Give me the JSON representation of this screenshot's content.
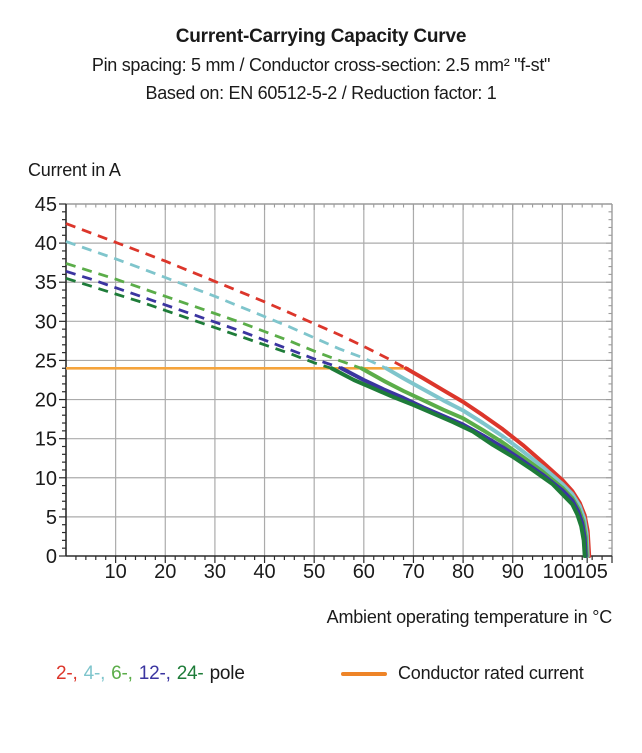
{
  "header": {
    "subtitle1": "Pin spacing: 5 mm / Conductor cross-section: 2.5 mm² \"f-st\"",
    "subtitle2": "Based on: EN 60512-5-2 / Reduction factor: 1"
  },
  "chart_data": {
    "type": "line",
    "title": "Current-Carrying Capacity Curve",
    "xlabel": "Ambient operating temperature in °C",
    "ylabel": "Current in A",
    "xlim": [
      0,
      110
    ],
    "ylim": [
      0,
      45
    ],
    "grid": true,
    "x_tick_labels": [
      10,
      20,
      30,
      40,
      50,
      60,
      70,
      80,
      90,
      100,
      105
    ],
    "x_gridlines": [
      10,
      20,
      30,
      40,
      50,
      60,
      70,
      80,
      90,
      100
    ],
    "x_tick_minor_step": 2,
    "y_tick_labels": [
      0,
      5,
      10,
      15,
      20,
      25,
      30,
      35,
      40,
      45
    ],
    "y_gridlines": [
      5,
      10,
      15,
      20,
      25,
      30,
      35,
      40
    ],
    "y_tick_minor_step": 1,
    "colors": {
      "grid": "#ababab",
      "border": "#9c9c9c",
      "axis": "#2b2b2b",
      "text": "#1a1a1a"
    },
    "rated_current": {
      "value": 24,
      "x_start": 0,
      "x_end": 69,
      "color": "#f5a43c",
      "label": "Conductor rated current"
    },
    "series": [
      {
        "name": "2-pole",
        "poles": 2,
        "color": "#dc362b",
        "dash_until_x": 68.5,
        "points": [
          [
            0,
            42.5
          ],
          [
            5,
            41.3
          ],
          [
            10,
            40.1
          ],
          [
            15,
            38.9
          ],
          [
            20,
            37.7
          ],
          [
            25,
            36.4
          ],
          [
            30,
            35.1
          ],
          [
            35,
            33.8
          ],
          [
            40,
            32.5
          ],
          [
            45,
            31.1
          ],
          [
            50,
            29.7
          ],
          [
            55,
            28.3
          ],
          [
            60,
            26.8
          ],
          [
            65,
            25.2
          ],
          [
            68.5,
            24.0
          ],
          [
            72,
            22.7
          ],
          [
            76,
            21.2
          ],
          [
            80,
            19.7
          ],
          [
            84,
            18.0
          ],
          [
            88,
            16.2
          ],
          [
            92,
            14.2
          ],
          [
            96,
            12.0
          ],
          [
            100,
            9.7
          ],
          [
            102,
            8.3
          ],
          [
            103.5,
            6.8
          ],
          [
            104.5,
            5.2
          ],
          [
            105.1,
            3.2
          ],
          [
            105.4,
            0
          ]
        ]
      },
      {
        "name": "4-pole",
        "poles": 4,
        "color": "#7fc5cc",
        "dash_until_x": 64.5,
        "points": [
          [
            0,
            40.2
          ],
          [
            5,
            39.1
          ],
          [
            10,
            38.0
          ],
          [
            15,
            36.8
          ],
          [
            20,
            35.6
          ],
          [
            25,
            34.4
          ],
          [
            30,
            33.2
          ],
          [
            35,
            31.9
          ],
          [
            40,
            30.6
          ],
          [
            45,
            29.3
          ],
          [
            50,
            27.9
          ],
          [
            55,
            26.5
          ],
          [
            60,
            25.3
          ],
          [
            64.5,
            24.0
          ],
          [
            68,
            22.7
          ],
          [
            72,
            21.3
          ],
          [
            76,
            19.9
          ],
          [
            80,
            18.6
          ],
          [
            84,
            17.0
          ],
          [
            88,
            15.3
          ],
          [
            92,
            13.4
          ],
          [
            96,
            11.4
          ],
          [
            100,
            9.2
          ],
          [
            102,
            7.9
          ],
          [
            103.5,
            6.4
          ],
          [
            104.4,
            4.8
          ],
          [
            104.9,
            2.8
          ],
          [
            105.1,
            0
          ]
        ]
      },
      {
        "name": "6-pole",
        "poles": 6,
        "color": "#5bad49",
        "dash_until_x": 59.5,
        "points": [
          [
            0,
            37.4
          ],
          [
            5,
            36.4
          ],
          [
            10,
            35.4
          ],
          [
            15,
            34.3
          ],
          [
            20,
            33.2
          ],
          [
            25,
            32.1
          ],
          [
            30,
            31.0
          ],
          [
            35,
            29.9
          ],
          [
            40,
            28.7
          ],
          [
            45,
            27.5
          ],
          [
            50,
            26.2
          ],
          [
            55,
            25.0
          ],
          [
            59.5,
            24.0
          ],
          [
            64,
            22.4
          ],
          [
            68,
            21.1
          ],
          [
            72,
            19.9
          ],
          [
            76,
            18.7
          ],
          [
            80,
            17.6
          ],
          [
            84,
            16.1
          ],
          [
            88,
            14.5
          ],
          [
            92,
            12.7
          ],
          [
            96,
            10.8
          ],
          [
            100,
            8.7
          ],
          [
            102,
            7.4
          ],
          [
            103.3,
            6.0
          ],
          [
            104.2,
            4.4
          ],
          [
            104.7,
            2.5
          ],
          [
            104.9,
            0
          ]
        ]
      },
      {
        "name": "12-pole",
        "poles": 12,
        "color": "#3b35a0",
        "dash_until_x": 55.5,
        "points": [
          [
            0,
            36.4
          ],
          [
            5,
            35.4
          ],
          [
            10,
            34.3
          ],
          [
            15,
            33.2
          ],
          [
            20,
            32.1
          ],
          [
            25,
            31.0
          ],
          [
            30,
            29.9
          ],
          [
            35,
            28.8
          ],
          [
            40,
            27.6
          ],
          [
            45,
            26.4
          ],
          [
            50,
            25.2
          ],
          [
            55.5,
            24.0
          ],
          [
            60,
            22.5
          ],
          [
            64,
            21.3
          ],
          [
            68,
            20.2
          ],
          [
            72,
            19.0
          ],
          [
            76,
            17.9
          ],
          [
            80,
            16.8
          ],
          [
            84,
            15.4
          ],
          [
            88,
            13.9
          ],
          [
            92,
            12.2
          ],
          [
            96,
            10.4
          ],
          [
            100,
            8.4
          ],
          [
            102,
            7.1
          ],
          [
            103.2,
            5.7
          ],
          [
            104,
            4.2
          ],
          [
            104.5,
            2.3
          ],
          [
            104.7,
            0
          ]
        ]
      },
      {
        "name": "24-pole",
        "poles": 24,
        "color": "#1e7c39",
        "dash_until_x": 53.5,
        "points": [
          [
            0,
            35.5
          ],
          [
            5,
            34.5
          ],
          [
            10,
            33.5
          ],
          [
            15,
            32.5
          ],
          [
            20,
            31.4
          ],
          [
            25,
            30.3
          ],
          [
            30,
            29.2
          ],
          [
            35,
            28.1
          ],
          [
            40,
            27.0
          ],
          [
            45,
            25.9
          ],
          [
            50,
            24.7
          ],
          [
            53.5,
            24.0
          ],
          [
            58,
            22.5
          ],
          [
            62,
            21.4
          ],
          [
            66,
            20.3
          ],
          [
            70,
            19.3
          ],
          [
            74,
            18.2
          ],
          [
            78,
            17.1
          ],
          [
            82,
            15.9
          ],
          [
            86,
            14.2
          ],
          [
            90,
            12.7
          ],
          [
            94,
            11.0
          ],
          [
            98,
            9.2
          ],
          [
            100,
            7.9
          ],
          [
            102,
            6.6
          ],
          [
            103,
            5.3
          ],
          [
            103.8,
            3.8
          ],
          [
            104.3,
            2.0
          ],
          [
            104.5,
            0
          ]
        ]
      }
    ]
  },
  "legend": {
    "pole_items": [
      {
        "label": "2-,",
        "color": "#dc362b"
      },
      {
        "label": "4-,",
        "color": "#7fc5cc"
      },
      {
        "label": "6-,",
        "color": "#5bad49"
      },
      {
        "label": "12-,",
        "color": "#3b35a0"
      },
      {
        "label": "24-",
        "color": "#1e7c39"
      }
    ],
    "pole_suffix": "pole",
    "rated": {
      "label": "Conductor rated current",
      "swatch_color": "#ee8427"
    }
  }
}
